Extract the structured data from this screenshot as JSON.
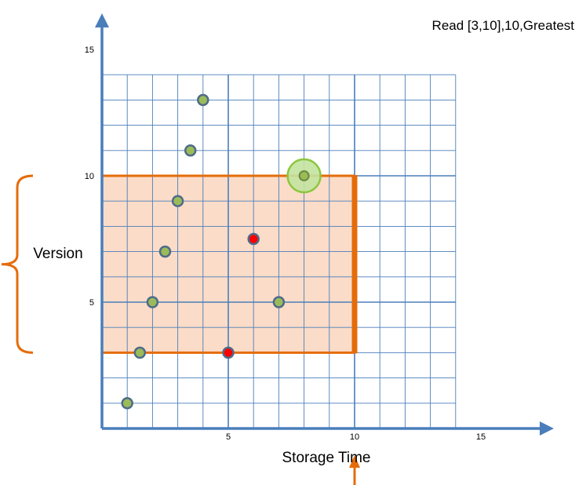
{
  "chart_data": {
    "type": "scatter",
    "title": "Read [3,10],10,Greatest",
    "xlabel": "Storage Time",
    "ylabel": "Version",
    "xlim": [
      0,
      17.5
    ],
    "ylim": [
      0,
      14
    ],
    "x_ticks": [
      5,
      10,
      15
    ],
    "y_ticks": [
      5,
      10,
      15
    ],
    "grid": true,
    "points": [
      {
        "x": 1,
        "y": 1,
        "category": "normal"
      },
      {
        "x": 1.5,
        "y": 3,
        "category": "normal"
      },
      {
        "x": 2,
        "y": 5,
        "category": "normal"
      },
      {
        "x": 2.5,
        "y": 7,
        "category": "normal"
      },
      {
        "x": 3,
        "y": 9,
        "category": "normal"
      },
      {
        "x": 3.5,
        "y": 11,
        "category": "normal"
      },
      {
        "x": 4,
        "y": 13,
        "category": "normal"
      },
      {
        "x": 5,
        "y": 3,
        "category": "excluded"
      },
      {
        "x": 6,
        "y": 7.5,
        "category": "excluded"
      },
      {
        "x": 7,
        "y": 5,
        "category": "normal"
      },
      {
        "x": 8,
        "y": 10,
        "category": "selected"
      }
    ],
    "query_region": {
      "x_range": [
        0,
        10
      ],
      "y_range": [
        3,
        10
      ]
    },
    "colors": {
      "axis": "#4a7ebb",
      "grid": "#4a7ebb",
      "region_fill": "#fbdcc8",
      "region_border": "#e46c0a",
      "point_fill": "#9bbb59",
      "point_stroke": "#4f6b8a",
      "excluded_fill": "#ff0000",
      "highlight_fill": "#c3e3a0",
      "highlight_stroke": "#8cc63f",
      "annotation": "#e46c0a"
    }
  }
}
